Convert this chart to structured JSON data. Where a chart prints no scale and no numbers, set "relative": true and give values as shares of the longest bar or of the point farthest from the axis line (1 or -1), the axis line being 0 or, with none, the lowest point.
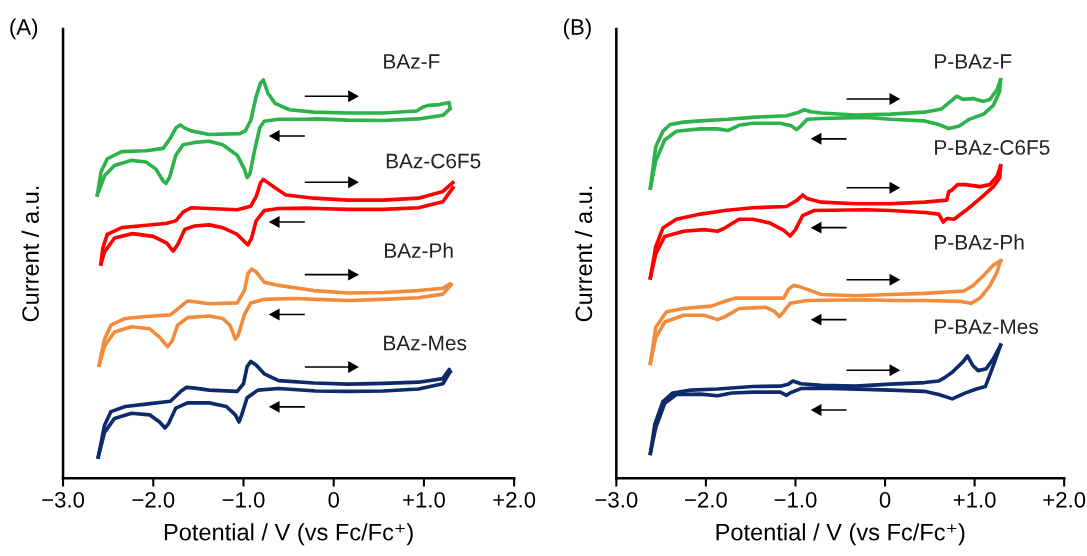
{
  "chart_data": [
    {
      "type": "line",
      "title": "(A)",
      "xlabel": "Potential / V (vs Fc/Fc⁺)",
      "ylabel": "Current / a.u.",
      "relative": true,
      "xlim": [
        -3.0,
        2.0
      ],
      "xticks": [
        {
          "value": -3.0,
          "label": "−3.0"
        },
        {
          "value": -2.0,
          "label": "−2.0"
        },
        {
          "value": -1.0,
          "label": "−1.0"
        },
        {
          "value": 0,
          "label": "0"
        },
        {
          "value": 1.0,
          "label": "+1.0"
        },
        {
          "value": 2.0,
          "label": "+2.0"
        }
      ],
      "tick_labels": "x",
      "grid": false,
      "legend": false,
      "marker": "none",
      "line_style": "solid",
      "series": [
        {
          "name": "BAz-F",
          "color": "#2db34a",
          "x": [
            -2.62,
            -2.58,
            -2.51,
            -2.35,
            -2.08,
            -1.89,
            -1.81,
            -1.75,
            -1.7,
            -1.66,
            -1.58,
            -1.38,
            -1.04,
            -0.98,
            -0.92,
            -0.86,
            -0.81,
            -0.78,
            -0.73,
            -0.65,
            -0.49,
            -0.22,
            0.16,
            0.55,
            0.92,
            0.99,
            1.05,
            1.17,
            1.28,
            1.29
          ],
          "values": [
            0.711,
            0.768,
            0.802,
            0.82,
            0.822,
            0.828,
            0.854,
            0.879,
            0.887,
            0.88,
            0.872,
            0.863,
            0.865,
            0.872,
            0.898,
            0.958,
            0.993,
            1.0,
            0.967,
            0.941,
            0.925,
            0.919,
            0.917,
            0.917,
            0.922,
            0.932,
            0.936,
            0.938,
            0.943,
            0.928
          ]
        },
        {
          "color": "#2db34a",
          "x": [
            -2.62,
            -2.54,
            -2.43,
            -2.24,
            -2.08,
            -1.97,
            -1.89,
            -1.86,
            -1.82,
            -1.75,
            -1.67,
            -1.54,
            -1.38,
            -1.23,
            -1.07,
            -0.99,
            -0.96,
            -0.93,
            -0.88,
            -0.82,
            -0.77,
            -0.61,
            -0.3,
            -0.2,
            0.16,
            0.55,
            0.94,
            1.21,
            1.29
          ],
          "values": [
            0.711,
            0.759,
            0.785,
            0.798,
            0.794,
            0.776,
            0.746,
            0.74,
            0.755,
            0.811,
            0.837,
            0.843,
            0.846,
            0.837,
            0.811,
            0.776,
            0.755,
            0.763,
            0.82,
            0.88,
            0.896,
            0.901,
            0.901,
            0.902,
            0.899,
            0.898,
            0.902,
            0.911,
            0.928
          ]
        },
        {
          "name": "BAz-C6F5",
          "color": "#ff0000",
          "x": [
            -2.58,
            -2.56,
            -2.51,
            -2.35,
            -2.16,
            -1.85,
            -1.75,
            -1.67,
            -1.58,
            -1.38,
            -1.07,
            -0.92,
            -0.86,
            -0.81,
            -0.78,
            -0.73,
            -0.65,
            -0.53,
            -0.22,
            0.16,
            0.55,
            0.94,
            1.21,
            1.32
          ],
          "values": [
            0.538,
            0.577,
            0.612,
            0.629,
            0.633,
            0.64,
            0.646,
            0.668,
            0.679,
            0.677,
            0.674,
            0.683,
            0.707,
            0.742,
            0.75,
            0.742,
            0.729,
            0.711,
            0.703,
            0.698,
            0.698,
            0.703,
            0.72,
            0.742
          ]
        },
        {
          "color": "#ff0000",
          "x": [
            -2.58,
            -2.54,
            -2.43,
            -2.23,
            -2.0,
            -1.85,
            -1.78,
            -1.73,
            -1.65,
            -1.54,
            -1.38,
            -1.23,
            -1.07,
            -0.99,
            -0.95,
            -0.91,
            -0.86,
            -0.77,
            -0.61,
            -0.3,
            -0.18,
            0.16,
            0.55,
            0.94,
            1.21,
            1.32
          ],
          "values": [
            0.538,
            0.568,
            0.603,
            0.614,
            0.607,
            0.59,
            0.57,
            0.586,
            0.625,
            0.633,
            0.636,
            0.629,
            0.612,
            0.594,
            0.586,
            0.603,
            0.646,
            0.672,
            0.677,
            0.678,
            0.677,
            0.675,
            0.675,
            0.679,
            0.694,
            0.729
          ]
        },
        {
          "name": "BAz-Ph",
          "color": "#f28b3c",
          "x": [
            -2.6,
            -2.54,
            -2.47,
            -2.31,
            -2.08,
            -1.81,
            -1.69,
            -1.62,
            -1.54,
            -1.38,
            -1.07,
            -0.99,
            -0.95,
            -0.91,
            -0.86,
            -0.77,
            -0.61,
            -0.22,
            0.16,
            0.55,
            0.94,
            1.21,
            1.29,
            1.3
          ],
          "values": [
            0.284,
            0.349,
            0.384,
            0.401,
            0.406,
            0.41,
            0.432,
            0.445,
            0.443,
            0.438,
            0.44,
            0.471,
            0.514,
            0.525,
            0.518,
            0.492,
            0.484,
            0.471,
            0.465,
            0.466,
            0.471,
            0.477,
            0.488,
            0.486
          ]
        },
        {
          "color": "#f28b3c",
          "x": [
            -2.6,
            -2.54,
            -2.43,
            -2.24,
            -2.04,
            -1.93,
            -1.84,
            -1.79,
            -1.73,
            -1.62,
            -1.38,
            -1.23,
            -1.15,
            -1.09,
            -1.06,
            -0.99,
            -0.92,
            -0.77,
            -0.42,
            -0.2,
            0.16,
            0.55,
            0.94,
            1.21,
            1.3
          ],
          "values": [
            0.284,
            0.332,
            0.367,
            0.38,
            0.375,
            0.354,
            0.33,
            0.345,
            0.384,
            0.403,
            0.407,
            0.401,
            0.384,
            0.349,
            0.358,
            0.41,
            0.44,
            0.449,
            0.451,
            0.449,
            0.446,
            0.449,
            0.453,
            0.462,
            0.486
          ]
        },
        {
          "name": "BAz-Mes",
          "color": "#0d2a6b",
          "x": [
            -2.61,
            -2.54,
            -2.47,
            -2.31,
            -2.08,
            -1.81,
            -1.69,
            -1.63,
            -1.54,
            -1.38,
            -1.07,
            -1.0,
            -0.96,
            -0.92,
            -0.86,
            -0.77,
            -0.61,
            -0.22,
            0.16,
            0.55,
            0.94,
            1.21,
            1.28,
            1.29
          ],
          "values": [
            0.053,
            0.133,
            0.167,
            0.18,
            0.186,
            0.193,
            0.219,
            0.228,
            0.226,
            0.221,
            0.218,
            0.237,
            0.28,
            0.293,
            0.284,
            0.262,
            0.245,
            0.239,
            0.236,
            0.238,
            0.241,
            0.25,
            0.273,
            0.267
          ]
        },
        {
          "color": "#0d2a6b",
          "x": [
            -2.61,
            -2.54,
            -2.43,
            -2.24,
            -2.04,
            -1.93,
            -1.87,
            -1.83,
            -1.75,
            -1.62,
            -1.38,
            -1.19,
            -1.09,
            -1.05,
            -1.02,
            -0.96,
            -0.84,
            -0.61,
            -0.2,
            0.16,
            0.55,
            0.94,
            1.21,
            1.29
          ],
          "values": [
            0.053,
            0.115,
            0.15,
            0.163,
            0.159,
            0.141,
            0.126,
            0.137,
            0.176,
            0.189,
            0.189,
            0.18,
            0.159,
            0.141,
            0.159,
            0.202,
            0.221,
            0.225,
            0.219,
            0.218,
            0.219,
            0.224,
            0.237,
            0.267
          ]
        }
      ]
    },
    {
      "type": "line",
      "title": "(B)",
      "xlabel": "Potential / V (vs Fc/Fc⁺)",
      "ylabel": "Current / a.u.",
      "relative": true,
      "xlim": [
        -3.0,
        2.0
      ],
      "xticks": [
        {
          "value": -3.0,
          "label": "−3.0"
        },
        {
          "value": -2.0,
          "label": "−2.0"
        },
        {
          "value": -1.0,
          "label": "−1.0"
        },
        {
          "value": 0,
          "label": "0"
        },
        {
          "value": 1.0,
          "label": "+1.0"
        },
        {
          "value": 2.0,
          "label": "+2.0"
        }
      ],
      "tick_labels": "x",
      "grid": false,
      "legend": false,
      "marker": "none",
      "line_style": "solid",
      "series": [
        {
          "name": "P-BAz-F",
          "color": "#2db34a",
          "x": [
            -2.62,
            -2.56,
            -2.48,
            -2.4,
            -2.25,
            -2.06,
            -1.75,
            -1.48,
            -1.1,
            -0.96,
            -0.9,
            -0.83,
            -0.71,
            -0.33,
            0.06,
            0.44,
            0.63,
            0.75,
            0.8,
            0.87,
            0.98,
            1.1,
            1.17,
            1.25,
            1.29
          ],
          "values": [
            0.728,
            0.832,
            0.871,
            0.888,
            0.894,
            0.897,
            0.901,
            0.906,
            0.91,
            0.919,
            0.925,
            0.92,
            0.917,
            0.912,
            0.914,
            0.919,
            0.927,
            0.949,
            0.959,
            0.951,
            0.953,
            0.946,
            0.951,
            0.975,
            1.0
          ]
        },
        {
          "color": "#2db34a",
          "x": [
            -2.62,
            -2.56,
            -2.46,
            -2.33,
            -2.06,
            -1.87,
            -1.75,
            -1.63,
            -1.48,
            -1.17,
            -1.04,
            -0.99,
            -0.94,
            -0.87,
            -0.71,
            -0.21,
            0.06,
            0.44,
            0.6,
            0.71,
            0.83,
            0.94,
            1.0,
            1.1,
            1.21,
            1.28,
            1.29
          ],
          "values": [
            0.728,
            0.797,
            0.849,
            0.871,
            0.877,
            0.877,
            0.873,
            0.886,
            0.891,
            0.891,
            0.884,
            0.875,
            0.884,
            0.901,
            0.903,
            0.906,
            0.901,
            0.897,
            0.888,
            0.878,
            0.884,
            0.901,
            0.906,
            0.914,
            0.936,
            0.971,
            1.0
          ]
        },
        {
          "name": "P-BAz-C6F5",
          "color": "#ff0000",
          "x": [
            -2.62,
            -2.56,
            -2.48,
            -2.33,
            -2.06,
            -1.79,
            -1.48,
            -1.1,
            -0.98,
            -0.92,
            -0.87,
            -0.71,
            -0.33,
            0.06,
            0.44,
            0.69,
            0.71,
            0.75,
            0.81,
            0.9,
            1.06,
            1.17,
            1.25,
            1.29
          ],
          "values": [
            0.503,
            0.581,
            0.628,
            0.65,
            0.663,
            0.672,
            0.679,
            0.682,
            0.698,
            0.711,
            0.702,
            0.693,
            0.689,
            0.689,
            0.693,
            0.698,
            0.719,
            0.724,
            0.737,
            0.737,
            0.732,
            0.737,
            0.758,
            0.784
          ]
        },
        {
          "color": "#ff0000",
          "x": [
            -2.62,
            -2.56,
            -2.46,
            -2.25,
            -2.02,
            -1.87,
            -1.79,
            -1.63,
            -1.48,
            -1.29,
            -1.13,
            -1.06,
            -1.0,
            -0.92,
            -0.79,
            -0.21,
            0.06,
            0.44,
            0.6,
            0.65,
            0.69,
            0.77,
            0.9,
            1.06,
            1.21,
            1.28,
            1.29
          ],
          "values": [
            0.503,
            0.563,
            0.607,
            0.62,
            0.624,
            0.62,
            0.628,
            0.65,
            0.65,
            0.641,
            0.622,
            0.608,
            0.624,
            0.659,
            0.672,
            0.674,
            0.672,
            0.667,
            0.663,
            0.643,
            0.652,
            0.65,
            0.672,
            0.702,
            0.732,
            0.754,
            0.784
          ]
        },
        {
          "name": "P-BAz-Ph",
          "color": "#f28b3c",
          "x": [
            -2.62,
            -2.56,
            -2.44,
            -2.25,
            -1.94,
            -1.79,
            -1.67,
            -1.48,
            -1.13,
            -1.08,
            -1.02,
            -0.96,
            -0.87,
            -0.71,
            -0.33,
            0.06,
            0.44,
            0.88,
            0.98,
            1.1,
            1.21,
            1.29
          ],
          "values": [
            0.288,
            0.379,
            0.418,
            0.426,
            0.432,
            0.444,
            0.452,
            0.452,
            0.452,
            0.474,
            0.484,
            0.481,
            0.474,
            0.461,
            0.458,
            0.461,
            0.464,
            0.47,
            0.483,
            0.509,
            0.535,
            0.546
          ]
        },
        {
          "color": "#f28b3c",
          "x": [
            -2.62,
            -2.56,
            -2.46,
            -2.25,
            -2.02,
            -1.87,
            -1.79,
            -1.63,
            -1.33,
            -1.23,
            -1.18,
            -1.13,
            -1.06,
            -0.87,
            -0.21,
            0.06,
            0.44,
            0.83,
            0.96,
            1.06,
            1.17,
            1.25,
            1.29
          ],
          "values": [
            0.288,
            0.353,
            0.392,
            0.409,
            0.409,
            0.398,
            0.405,
            0.426,
            0.429,
            0.418,
            0.406,
            0.418,
            0.439,
            0.446,
            0.448,
            0.446,
            0.446,
            0.444,
            0.439,
            0.452,
            0.483,
            0.517,
            0.546
          ]
        },
        {
          "name": "P-BAz-Mes",
          "color": "#0d2a6b",
          "x": [
            -2.62,
            -2.57,
            -2.48,
            -2.37,
            -2.17,
            -1.87,
            -1.48,
            -1.17,
            -1.08,
            -1.03,
            -0.94,
            -0.71,
            -0.33,
            0.06,
            0.44,
            0.6,
            0.67,
            0.75,
            0.87,
            0.92,
            0.98,
            1.04,
            1.13,
            1.21,
            1.29
          ],
          "values": [
            0.062,
            0.136,
            0.192,
            0.214,
            0.221,
            0.224,
            0.23,
            0.231,
            0.236,
            0.244,
            0.237,
            0.233,
            0.231,
            0.236,
            0.24,
            0.244,
            0.253,
            0.266,
            0.292,
            0.307,
            0.283,
            0.27,
            0.275,
            0.3,
            0.334
          ]
        },
        {
          "color": "#0d2a6b",
          "x": [
            -2.62,
            -2.56,
            -2.46,
            -2.33,
            -2.06,
            -1.87,
            -1.71,
            -1.48,
            -1.17,
            -1.1,
            -1.06,
            -0.94,
            -0.71,
            -0.21,
            0.06,
            0.44,
            0.6,
            0.75,
            0.9,
            1.02,
            1.12,
            1.21,
            1.29
          ],
          "values": [
            0.062,
            0.127,
            0.188,
            0.21,
            0.211,
            0.207,
            0.214,
            0.216,
            0.216,
            0.208,
            0.214,
            0.225,
            0.226,
            0.223,
            0.221,
            0.218,
            0.21,
            0.199,
            0.214,
            0.224,
            0.23,
            0.283,
            0.334
          ]
        }
      ]
    }
  ]
}
